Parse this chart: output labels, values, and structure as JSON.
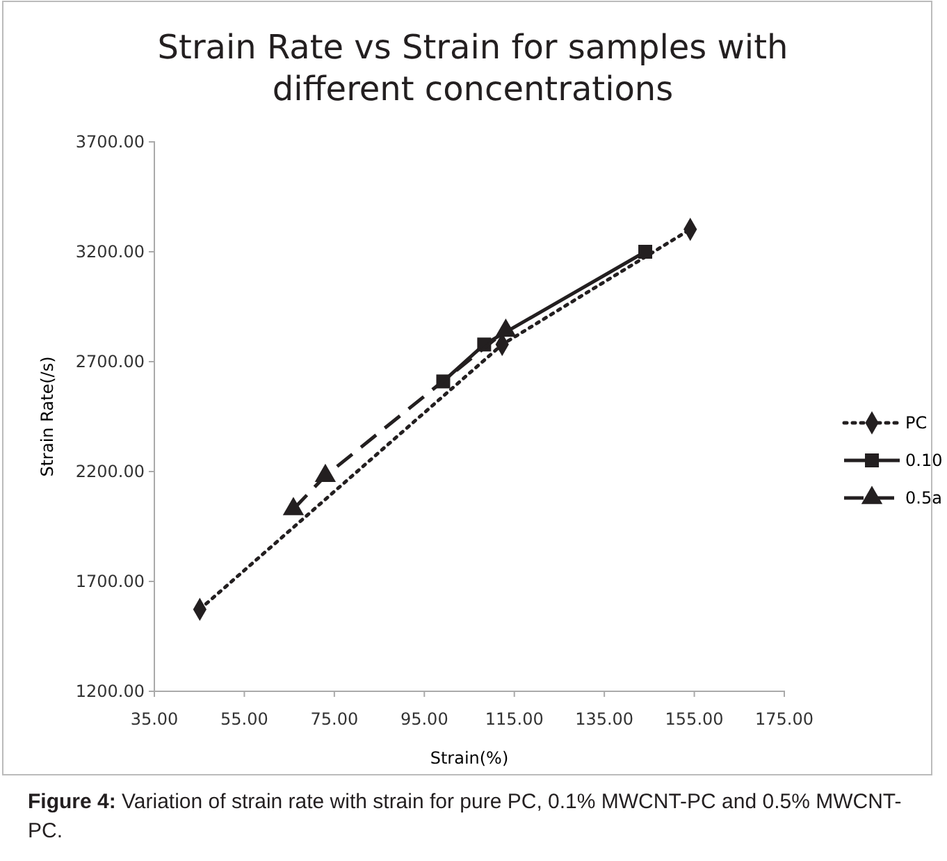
{
  "chart_data": {
    "type": "line",
    "title": "Strain Rate vs Strain for samples with different concentrations",
    "xlabel": "Strain(%)",
    "ylabel": "Strain Rate(/s)",
    "xlim": [
      35,
      175
    ],
    "xticks": [
      {
        "value": 35,
        "label": "35.00"
      },
      {
        "value": 55,
        "label": "55.00"
      },
      {
        "value": 75,
        "label": "75.00"
      },
      {
        "value": 95,
        "label": "95.00"
      },
      {
        "value": 115,
        "label": "115.00"
      },
      {
        "value": 135,
        "label": "135.00"
      },
      {
        "value": 155,
        "label": "155.00"
      },
      {
        "value": 175,
        "label": "175.00"
      }
    ],
    "ylim": [
      1200,
      3700
    ],
    "yticks": [
      {
        "value": 1200,
        "label": "1200.00"
      },
      {
        "value": 1700,
        "label": "1700.00"
      },
      {
        "value": 2200,
        "label": "2200.00"
      },
      {
        "value": 2700,
        "label": "2700.00"
      },
      {
        "value": 3200,
        "label": "3200.00"
      },
      {
        "value": 3700,
        "label": "3700.00"
      }
    ],
    "legend": "right",
    "grid": false,
    "series": [
      {
        "name": "PC",
        "color": "#231f20",
        "x": [
          45.1,
          112.3,
          154.1
        ],
        "values": [
          1573,
          2778,
          3302
        ],
        "marker": "diamond",
        "line_style": "dotted"
      },
      {
        "name": "0.10",
        "color": "#231f20",
        "x": [
          99.2,
          108.3,
          144.1
        ],
        "values": [
          2610,
          2778,
          3200
        ],
        "marker": "square",
        "line_style": "solid"
      },
      {
        "name": "0.5a",
        "color": "#231f20",
        "x": [
          65.9,
          73.0,
          113.1
        ],
        "values": [
          2029,
          2180,
          2841
        ],
        "marker": "triangle",
        "line_style": "dashed"
      }
    ],
    "annotations": [
      "Figure 4: Variation of strain rate with strain for pure PC, 0.1% MWCNT-PC and 0.5% MWCNT-PC."
    ]
  }
}
